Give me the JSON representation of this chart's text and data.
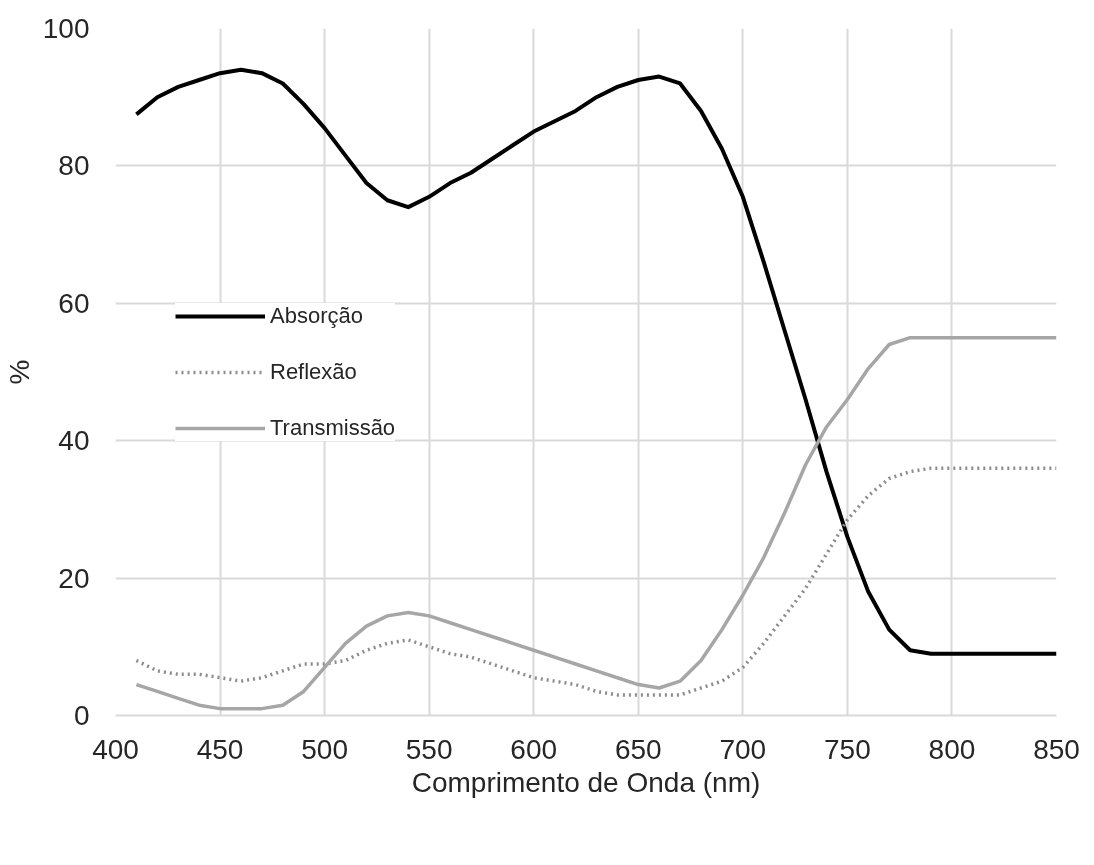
{
  "chart_data": {
    "type": "line",
    "xlabel": "Comprimento de Onda (nm)",
    "ylabel": "%",
    "x": [
      410,
      420,
      430,
      440,
      450,
      460,
      470,
      480,
      490,
      500,
      510,
      520,
      530,
      540,
      550,
      560,
      570,
      580,
      590,
      600,
      610,
      620,
      630,
      640,
      650,
      660,
      670,
      680,
      690,
      700,
      710,
      720,
      730,
      740,
      750,
      760,
      770,
      780,
      790,
      800,
      810,
      820,
      830,
      840,
      850
    ],
    "series": [
      {
        "name": "Absorção",
        "color": "#000000",
        "line_style": "solid",
        "values": [
          87.5,
          90,
          91.5,
          92.5,
          93.5,
          94,
          93.5,
          92,
          89,
          85.5,
          81.5,
          77.5,
          75,
          74,
          75.5,
          77.5,
          79,
          81,
          83,
          85,
          86.5,
          88,
          90,
          91.5,
          92.5,
          93,
          92,
          88,
          82.5,
          75.5,
          66,
          56,
          46,
          35.5,
          26,
          18,
          12.5,
          9.5,
          9,
          9,
          9,
          9,
          9,
          9,
          9
        ]
      },
      {
        "name": "Reflexão",
        "color": "#8c8c8c",
        "line_style": "dotted",
        "values": [
          8,
          6.5,
          6,
          6,
          5.5,
          5,
          5.5,
          6.5,
          7.5,
          7.5,
          8,
          9.5,
          10.5,
          11,
          10,
          9,
          8.5,
          7.5,
          6.5,
          5.5,
          5,
          4.5,
          3.5,
          3,
          3,
          3,
          3,
          4,
          5,
          7,
          10.5,
          14.5,
          18.5,
          23.5,
          28.5,
          32,
          34.5,
          35.5,
          36,
          36,
          36,
          36,
          36,
          36,
          36
        ]
      },
      {
        "name": "Transmissão",
        "color": "#a6a6a6",
        "line_style": "solid",
        "values": [
          4.5,
          3.5,
          2.5,
          1.5,
          1,
          1,
          1,
          1.5,
          3.5,
          7,
          10.5,
          13,
          14.5,
          15,
          14.5,
          13.5,
          12.5,
          11.5,
          10.5,
          9.5,
          8.5,
          7.5,
          6.5,
          5.5,
          4.5,
          4,
          5,
          8,
          12.5,
          17.5,
          23,
          29.5,
          36.5,
          42,
          46,
          50.5,
          54,
          55,
          55,
          55,
          55,
          55,
          55,
          55,
          55
        ]
      }
    ],
    "xlim": [
      400,
      850
    ],
    "ylim": [
      0,
      100
    ],
    "xticks": [
      400,
      450,
      500,
      550,
      600,
      650,
      700,
      750,
      800,
      850
    ],
    "yticks": [
      0,
      20,
      40,
      60,
      80,
      100
    ],
    "grid": true,
    "legend": "left"
  }
}
